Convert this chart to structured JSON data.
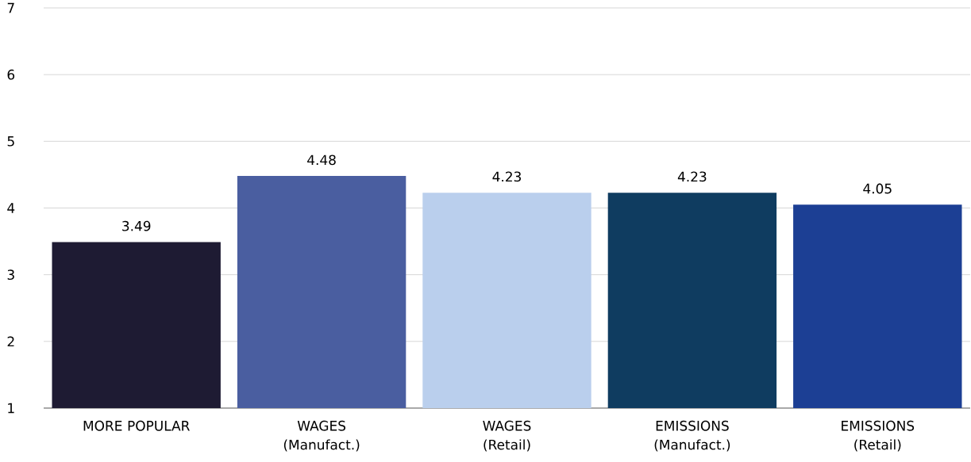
{
  "chart_data": {
    "type": "bar",
    "categories": [
      "MORE POPULAR",
      "WAGES\n(Manufact.)",
      "WAGES\n(Retail)",
      "EMISSIONS\n(Manufact.)",
      "EMISSIONS\n(Retail)"
    ],
    "values": [
      3.49,
      4.48,
      4.23,
      4.23,
      4.05
    ],
    "colors": [
      "#1e1b33",
      "#4a5ea0",
      "#bacfed",
      "#0f3c60",
      "#1c3f94"
    ],
    "ylim": [
      1,
      7
    ],
    "yticks": [
      1,
      2,
      3,
      4,
      5,
      6,
      7
    ],
    "grid": "y",
    "data_labels": true
  }
}
